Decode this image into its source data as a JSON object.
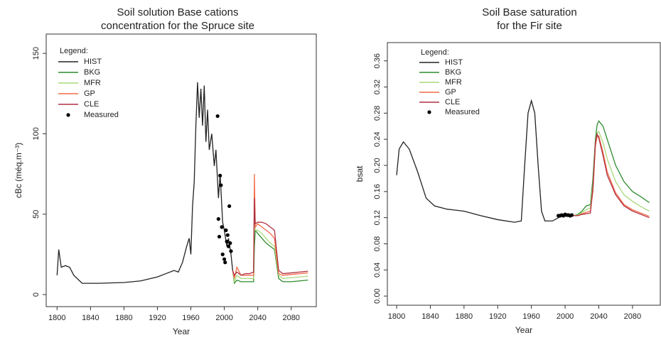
{
  "chart_data": [
    {
      "type": "line",
      "title": [
        "Soil solution Base cations",
        "concentration for the Spruce site"
      ],
      "x_label": "Year",
      "y_label": "cBc (méq.m⁻³)",
      "legend_title": "Legend:",
      "xlim": [
        1787,
        2110
      ],
      "ylim": [
        -7.5,
        162
      ],
      "xticks": [
        1800,
        1840,
        1880,
        1920,
        1960,
        2000,
        2040,
        2080
      ],
      "yticks": [
        0,
        50,
        100,
        150
      ],
      "series": [
        {
          "name": "HIST",
          "color": "#222222",
          "x": [
            1800,
            1802,
            1805,
            1810,
            1815,
            1820,
            1830,
            1850,
            1880,
            1900,
            1920,
            1930,
            1940,
            1945,
            1950,
            1955,
            1958,
            1960,
            1962,
            1964,
            1966,
            1968,
            1970,
            1972,
            1974,
            1976,
            1978,
            1980,
            1982,
            1985,
            1988,
            1990,
            1993,
            1995,
            1998,
            2000,
            2003,
            2005,
            2008,
            2010
          ],
          "values": [
            12,
            28,
            17,
            18,
            17,
            12,
            7,
            7,
            7.5,
            8.5,
            11,
            13,
            15,
            14,
            20,
            30,
            35,
            25,
            55,
            70,
            105,
            132,
            110,
            128,
            105,
            130,
            95,
            115,
            90,
            100,
            80,
            90,
            60,
            75,
            45,
            40,
            30,
            35,
            25,
            15
          ]
        },
        {
          "name": "BKG",
          "color": "#2e8b2e",
          "x": [
            2010,
            2012,
            2015,
            2020,
            2025,
            2030,
            2035,
            2036,
            2037,
            2040,
            2045,
            2050,
            2055,
            2060,
            2065,
            2070,
            2080,
            2090,
            2100
          ],
          "values": [
            15,
            7,
            9,
            8,
            8,
            8,
            8,
            30,
            40,
            38,
            35,
            32,
            30,
            28,
            10,
            8,
            8,
            8.5,
            9
          ]
        },
        {
          "name": "MFR",
          "color": "#a8d878",
          "x": [
            2010,
            2012,
            2015,
            2020,
            2025,
            2030,
            2035,
            2036,
            2037,
            2040,
            2045,
            2050,
            2055,
            2060,
            2065,
            2070,
            2080,
            2090,
            2100
          ],
          "values": [
            15,
            8,
            12,
            10,
            10,
            10,
            10,
            55,
            40,
            40,
            38,
            35,
            32,
            30,
            12,
            10,
            10.5,
            11,
            11.5
          ]
        },
        {
          "name": "GP",
          "color": "#f46a4a",
          "x": [
            2010,
            2012,
            2015,
            2020,
            2025,
            2030,
            2035,
            2036,
            2037,
            2040,
            2045,
            2050,
            2055,
            2060,
            2065,
            2070,
            2080,
            2090,
            2100
          ],
          "values": [
            15,
            10,
            17,
            12,
            12,
            12,
            12,
            75,
            42,
            44,
            42,
            40,
            38,
            35,
            13,
            12,
            12.5,
            13,
            13.5
          ]
        },
        {
          "name": "CLE",
          "color": "#b03040",
          "x": [
            2010,
            2012,
            2015,
            2020,
            2025,
            2030,
            2035,
            2036,
            2037,
            2040,
            2045,
            2050,
            2055,
            2060,
            2065,
            2070,
            2080,
            2090,
            2100
          ],
          "values": [
            15,
            12,
            14,
            12,
            13,
            13,
            14,
            60,
            44,
            45,
            45,
            44,
            42,
            40,
            15,
            13,
            13.5,
            14,
            14.5
          ]
        },
        {
          "name": "Measured",
          "color": "#000000",
          "marker": "point",
          "x": [
            1992,
            1993,
            1994,
            1995,
            1996,
            1997,
            1998,
            2000,
            2001,
            2002,
            2003,
            2004,
            2005,
            2006,
            2007,
            2008
          ],
          "values": [
            111,
            47,
            36,
            74,
            68,
            42,
            25,
            22,
            20,
            40,
            33,
            37,
            30,
            55,
            32,
            27
          ]
        }
      ]
    },
    {
      "type": "line",
      "title": [
        "Soil Base saturation",
        "for the Fir site"
      ],
      "x_label": "Year",
      "y_label": "bsat",
      "legend_title": "Legend:",
      "xlim": [
        1789,
        2113
      ],
      "ylim": [
        -0.014,
        0.388
      ],
      "xticks": [
        1800,
        1840,
        1880,
        1920,
        1960,
        2000,
        2040,
        2080
      ],
      "yticks": [
        {
          "value": 0,
          "label": "0.00"
        },
        {
          "value": 0.04,
          "label": "0.04"
        },
        {
          "value": 0.08,
          "label": "0.08"
        },
        {
          "value": 0.12,
          "label": "0.12"
        },
        {
          "value": 0.16,
          "label": "0.16"
        },
        {
          "value": 0.2,
          "label": "0.20"
        },
        {
          "value": 0.24,
          "label": "0.24"
        },
        {
          "value": 0.28,
          "label": "0.28"
        },
        {
          "value": 0.32,
          "label": "0.32"
        },
        {
          "value": 0.36,
          "label": "0.36"
        }
      ],
      "series": [
        {
          "name": "HIST",
          "color": "#222222",
          "x": [
            1800,
            1803,
            1808,
            1815,
            1825,
            1835,
            1845,
            1860,
            1880,
            1900,
            1920,
            1940,
            1948,
            1952,
            1956,
            1960,
            1964,
            1968,
            1972,
            1976,
            1985,
            1995,
            2010
          ],
          "values": [
            0.185,
            0.225,
            0.236,
            0.225,
            0.19,
            0.15,
            0.138,
            0.133,
            0.13,
            0.123,
            0.117,
            0.113,
            0.115,
            0.2,
            0.28,
            0.299,
            0.28,
            0.2,
            0.13,
            0.115,
            0.115,
            0.122,
            0.123
          ]
        },
        {
          "name": "BKG",
          "color": "#2e8b2e",
          "x": [
            2010,
            2015,
            2020,
            2025,
            2030,
            2033,
            2036,
            2038,
            2040,
            2045,
            2050,
            2060,
            2070,
            2080,
            2090,
            2100
          ],
          "values": [
            0.123,
            0.125,
            0.13,
            0.138,
            0.14,
            0.18,
            0.24,
            0.262,
            0.268,
            0.26,
            0.24,
            0.2,
            0.175,
            0.16,
            0.152,
            0.143
          ]
        },
        {
          "name": "MFR",
          "color": "#a8d878",
          "x": [
            2010,
            2015,
            2020,
            2025,
            2030,
            2033,
            2036,
            2038,
            2040,
            2045,
            2050,
            2060,
            2070,
            2080,
            2090,
            2100
          ],
          "values": [
            0.123,
            0.124,
            0.128,
            0.132,
            0.135,
            0.17,
            0.235,
            0.25,
            0.252,
            0.235,
            0.21,
            0.175,
            0.155,
            0.145,
            0.137,
            0.13
          ]
        },
        {
          "name": "GP",
          "color": "#f46a4a",
          "x": [
            2010,
            2015,
            2020,
            2025,
            2030,
            2033,
            2036,
            2038,
            2040,
            2045,
            2050,
            2060,
            2070,
            2080,
            2090,
            2100
          ],
          "values": [
            0.123,
            0.123,
            0.126,
            0.128,
            0.13,
            0.16,
            0.23,
            0.244,
            0.245,
            0.22,
            0.19,
            0.158,
            0.14,
            0.132,
            0.127,
            0.122
          ]
        },
        {
          "name": "CLE",
          "color": "#b03040",
          "x": [
            2010,
            2015,
            2020,
            2025,
            2030,
            2033,
            2036,
            2038,
            2040,
            2045,
            2050,
            2060,
            2070,
            2080,
            2090,
            2100
          ],
          "values": [
            0.123,
            0.123,
            0.125,
            0.126,
            0.127,
            0.165,
            0.235,
            0.248,
            0.242,
            0.215,
            0.185,
            0.155,
            0.138,
            0.13,
            0.125,
            0.12
          ]
        },
        {
          "name": "Measured",
          "color": "#000000",
          "marker": "point",
          "x": [
            1992,
            1994,
            1996,
            1998,
            2000,
            2002,
            2004,
            2006,
            2008
          ],
          "values": [
            0.123,
            0.123,
            0.124,
            0.123,
            0.125,
            0.124,
            0.124,
            0.123,
            0.124
          ]
        }
      ]
    }
  ]
}
